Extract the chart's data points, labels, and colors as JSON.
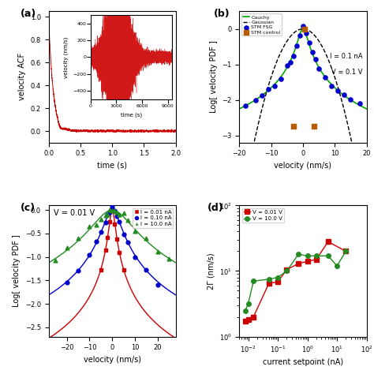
{
  "panel_labels": [
    "(a)",
    "(b)",
    "(c)",
    "(d)"
  ],
  "acf_color": "#cc0000",
  "inset_color": "#cc0000",
  "cauchy_color": "#00aa00",
  "gaussian_color": "#000000",
  "stm_control_color": "#b85c00",
  "stm_fsg_color": "#0000cc",
  "red_color": "#cc0000",
  "blue_color": "#0000cc",
  "green_color": "#228B22",
  "panel_b_annotations_I": "I = 0.1 nA",
  "panel_b_annotations_V": "V = 0.1 V",
  "panel_c_annotation": "V = 0.01 V",
  "legend_b": [
    "STM control",
    "Gaussian",
    "Cauchy",
    "STM FSG"
  ],
  "legend_c": [
    "I = 0.01 nA",
    "I = 0.10 nA",
    "I = 10.0 nA"
  ],
  "legend_d": [
    "V = 0.01 V",
    "V = 10.0 V"
  ],
  "panel_d_xlabel": "current setpoint (nA)",
  "panel_d_ylabel": "2Γ (nm/s)",
  "panel_b_xlabel": "velocity (nm/s)",
  "panel_b_ylabel": "Log[ velocity PDF ]",
  "panel_c_xlabel": "velocity (nm/s)",
  "panel_c_ylabel": "Log[ velocity PDF ]",
  "panel_a_xlabel": "time (s)",
  "panel_a_ylabel": "velocity ACF",
  "inset_xlabel": "time (s)",
  "inset_ylabel": "velocity (nm/s)",
  "panel_d_current_red": [
    0.008,
    0.01,
    0.015,
    0.05,
    0.1,
    0.2,
    0.5,
    1.0,
    2.0,
    5.0,
    20.0
  ],
  "panel_d_gamma_red": [
    1.7,
    1.8,
    2.0,
    6.5,
    6.8,
    10.5,
    13.0,
    14.0,
    15.0,
    28.0,
    20.0
  ],
  "panel_d_current_green": [
    0.008,
    0.01,
    0.015,
    0.05,
    0.1,
    0.2,
    0.5,
    1.0,
    2.0,
    5.0,
    10.0,
    20.0
  ],
  "panel_d_gamma_green": [
    2.5,
    3.2,
    7.0,
    7.5,
    8.0,
    10.0,
    18.0,
    17.0,
    17.0,
    17.0,
    12.0,
    20.0
  ]
}
